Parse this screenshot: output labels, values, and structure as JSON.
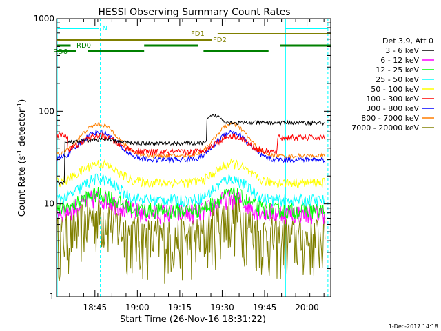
{
  "chart_data": {
    "type": "line",
    "title": "HESSI Observing Summary Count Rates",
    "xlabel": "Start Time (26-Nov-16 18:31:22)",
    "ylabel_main": "Count Rate (s",
    "ylabel_sup1": "-1",
    "ylabel_mid": " detector",
    "ylabel_sup2": "-1",
    "ylabel_end": ")",
    "x_start_min": 0,
    "x_end_min": 97,
    "y_scale": "log",
    "ylim": [
      1,
      1000
    ],
    "x_ticks": [
      {
        "t": 13.6,
        "label": "18:45"
      },
      {
        "t": 28.6,
        "label": "19:00"
      },
      {
        "t": 43.6,
        "label": "19:15"
      },
      {
        "t": 58.6,
        "label": "19:30"
      },
      {
        "t": 73.6,
        "label": "19:45"
      },
      {
        "t": 88.6,
        "label": "20:00"
      }
    ],
    "y_ticks": [
      {
        "v": 1,
        "label": "1"
      },
      {
        "v": 10,
        "label": "10"
      },
      {
        "v": 100,
        "label": "100"
      },
      {
        "v": 1000,
        "label": "1000"
      }
    ],
    "legend": {
      "header": "Det 3,9, Att 0",
      "entries": [
        {
          "label": "3 - 6 keV",
          "color": "#000000"
        },
        {
          "label": "6 - 12 keV",
          "color": "#ff00ff"
        },
        {
          "label": "12 - 25 keV",
          "color": "#00ff00"
        },
        {
          "label": "25 - 50 keV",
          "color": "#00ffff"
        },
        {
          "label": "50 - 100 keV",
          "color": "#ffff00"
        },
        {
          "label": "100 - 300 keV",
          "color": "#ff0000"
        },
        {
          "label": "300 - 800 keV",
          "color": "#0000ff"
        },
        {
          "label": "800 - 7000 keV",
          "color": "#ff7f00"
        },
        {
          "label": "7000 - 20000 keV",
          "color": "#808000"
        }
      ]
    },
    "night_intervals": [
      {
        "label": "N",
        "start": 0,
        "end": 15.5
      }
    ],
    "night_end_interval": {
      "start": 81,
      "end": 96
    },
    "fd_bars": [
      {
        "label": "FD1",
        "start": 57,
        "end": 97,
        "color": "#808000"
      },
      {
        "label": "FD2",
        "start": 0,
        "end": 55,
        "color": "#808000"
      }
    ],
    "rd_bars": [
      {
        "label": "RD0",
        "start": 0,
        "end": 31,
        "color": "#008000"
      },
      {
        "label": "RD6",
        "start": 0,
        "end": 7,
        "color": "#008000"
      }
    ],
    "timestamp": "1-Dec-2017 14:18"
  }
}
